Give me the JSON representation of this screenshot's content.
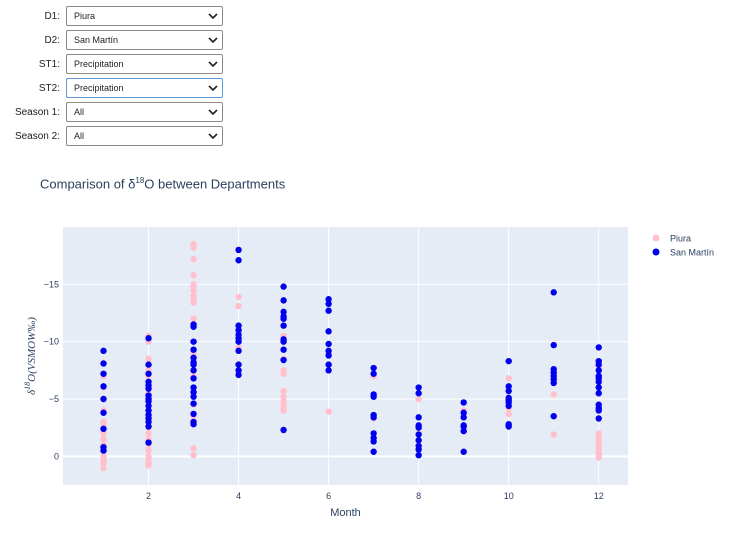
{
  "controls": [
    {
      "label": "D1:",
      "value": "Piura"
    },
    {
      "label": "D2:",
      "value": "San Martín"
    },
    {
      "label": "ST1:",
      "value": "Precipitation"
    },
    {
      "label": "ST2:",
      "value": "Precipitation"
    },
    {
      "label": "Season 1:",
      "value": "All"
    },
    {
      "label": "Season 2:",
      "value": "All"
    }
  ],
  "chart_data": {
    "type": "scatter",
    "title_prefix": "Comparison of δ",
    "title_sup": "18",
    "title_suffix": "O between Departments",
    "xlabel": "Month",
    "ylabel_prefix": "δ",
    "ylabel_sup": "18",
    "ylabel_suffix": "O(VSMOW‰)",
    "xlim": [
      0.1,
      12.65
    ],
    "ylim": [
      2.5,
      -20
    ],
    "y_reversed": true,
    "x_ticks": [
      2,
      4,
      6,
      8,
      10,
      12
    ],
    "y_ticks": [
      0,
      -5,
      -10,
      -15
    ],
    "y_tick_labels": [
      "0",
      "−5",
      "−10",
      "−15"
    ],
    "grid": true,
    "legend_position": "top-right",
    "colors": {
      "piura": "#ffc0cb",
      "san_martin": "#0000ee",
      "plot_bg": "#e5ecf6",
      "grid": "#ffffff",
      "text": "#2a3f5f"
    },
    "series": [
      {
        "name": "Piura",
        "color": "#ffc0cb",
        "x": [
          1,
          1,
          1,
          1,
          1,
          1,
          1,
          1,
          1,
          1,
          1,
          1,
          1,
          1,
          2,
          2,
          2,
          2,
          2,
          2,
          2,
          2,
          2,
          2,
          2,
          2,
          2,
          2,
          2,
          2,
          2,
          2,
          2,
          2,
          2,
          2,
          2,
          3,
          3,
          3,
          3,
          3,
          3,
          3,
          3,
          3,
          3,
          3,
          3,
          3,
          3,
          3,
          3,
          3,
          3,
          3,
          3,
          3,
          3,
          4,
          4,
          4,
          4,
          4,
          4,
          5,
          5,
          5,
          5,
          5,
          5,
          5,
          5,
          5,
          5,
          5,
          6,
          6,
          6,
          7,
          7,
          7,
          7,
          8,
          8,
          8,
          9,
          9,
          10,
          10,
          10,
          10,
          10,
          11,
          11,
          11,
          11,
          12,
          12,
          12,
          12,
          12,
          12,
          12,
          12,
          12,
          12,
          12,
          12,
          12
        ],
        "y": [
          -7.0,
          -6.0,
          -5.0,
          -4.0,
          -3.0,
          -2.8,
          -2.0,
          -1.5,
          -1.0,
          -0.5,
          0,
          0.3,
          0.6,
          1.0,
          -10.5,
          -10.0,
          -8.5,
          -8.0,
          -7.5,
          -7.0,
          -6.5,
          -6.0,
          -5.5,
          -5.0,
          -4.5,
          -4.0,
          -3.5,
          -3.0,
          -2.5,
          -2.0,
          -1.5,
          -1.0,
          -0.5,
          0,
          0.3,
          0.6,
          0.8,
          -18.5,
          -18.2,
          -17.2,
          -15.8,
          -15.0,
          -14.8,
          -14.5,
          -14.0,
          -13.8,
          -13.4,
          -12.0,
          -11.5,
          -10.0,
          -9.0,
          -8.0,
          -7.0,
          -5.5,
          -4.5,
          -3.5,
          -3.0,
          -0.7,
          -0.1,
          -13.9,
          -13.1,
          -11.0,
          -10.3,
          -9.5,
          -7.5,
          -12.0,
          -10.5,
          -8.5,
          -7.5,
          -7.2,
          -5.7,
          -5.2,
          -4.8,
          -4.4,
          -4.1,
          -4.0,
          -7.5,
          -9.0,
          -3.9,
          -7.0,
          -5.3,
          -3.3,
          -1.6,
          -5.0,
          -2.0,
          -1.0,
          -4.0,
          -2.5,
          -6.8,
          -5.0,
          -4.6,
          -4.2,
          -3.7,
          -7.3,
          -6.8,
          -5.4,
          -1.9,
          -7.8,
          -6.5,
          -5.5,
          -4.5,
          -4.2,
          -2.0,
          -1.6,
          -1.3,
          -1.0,
          -0.7,
          -0.4,
          -0.1,
          0.1
        ]
      },
      {
        "name": "San Martín",
        "color": "#0000ee",
        "x": [
          1,
          1,
          1,
          1,
          1,
          1,
          1,
          1,
          1,
          2,
          2,
          2,
          2,
          2,
          2,
          2,
          2,
          2,
          2,
          2,
          2,
          2,
          2,
          2,
          2,
          3,
          3,
          3,
          3,
          3,
          3,
          3,
          3,
          3,
          3,
          3,
          3,
          3,
          3,
          3,
          3,
          4,
          4,
          4,
          4,
          4,
          4,
          4,
          4,
          4,
          4,
          4,
          5,
          5,
          5,
          5,
          5,
          5,
          5,
          5,
          5,
          5,
          5,
          6,
          6,
          6,
          6,
          6,
          6,
          6,
          6,
          6,
          7,
          7,
          7,
          7,
          7,
          7,
          7,
          7,
          7,
          7,
          8,
          8,
          8,
          8,
          8,
          8,
          8,
          8,
          8,
          8,
          9,
          9,
          9,
          9,
          9,
          9,
          9,
          10,
          10,
          10,
          10,
          10,
          10,
          10,
          10,
          10,
          11,
          11,
          11,
          11,
          11,
          11,
          11,
          11,
          12,
          12,
          12,
          12,
          12,
          12,
          12,
          12,
          12,
          12,
          12,
          12,
          12
        ],
        "y": [
          -9.2,
          -8.1,
          -7.2,
          -6.1,
          -5.0,
          -3.8,
          -2.4,
          -0.8,
          -0.5,
          -10.3,
          -8.0,
          -7.2,
          -6.5,
          -6.2,
          -5.9,
          -5.3,
          -5.0,
          -4.8,
          -4.4,
          -4.0,
          -3.6,
          -3.3,
          -3.0,
          -2.6,
          -1.2,
          -11.5,
          -11.3,
          -10.0,
          -9.3,
          -8.6,
          -8.2,
          -8.0,
          -7.5,
          -6.8,
          -6.0,
          -5.6,
          -5.2,
          -4.6,
          -3.7,
          -3.0,
          -2.8,
          -18.0,
          -17.1,
          -11.4,
          -11.0,
          -10.6,
          -10.3,
          -10.0,
          -9.2,
          -8.0,
          -7.5,
          -7.1,
          -14.8,
          -13.6,
          -12.6,
          -12.2,
          -12.0,
          -11.4,
          -10.2,
          -10.0,
          -9.3,
          -8.4,
          -2.3,
          -13.7,
          -13.3,
          -12.7,
          -10.9,
          -9.8,
          -9.2,
          -8.8,
          -8.0,
          -7.5,
          -7.7,
          -7.2,
          -5.4,
          -5.2,
          -3.6,
          -3.4,
          -2.0,
          -1.6,
          -1.3,
          -0.4,
          -6.0,
          -5.5,
          -3.4,
          -2.7,
          -2.5,
          -1.9,
          -1.4,
          -0.9,
          -0.6,
          -0.1,
          -4.7,
          -3.8,
          -3.4,
          -2.7,
          -2.6,
          -2.2,
          -0.4,
          -8.3,
          -6.1,
          -5.7,
          -5.1,
          -4.9,
          -4.7,
          -4.4,
          -2.8,
          -2.6,
          -14.3,
          -9.7,
          -7.6,
          -7.3,
          -7.0,
          -6.7,
          -6.4,
          -3.5,
          -9.5,
          -8.3,
          -8.0,
          -7.5,
          -7.0,
          -6.8,
          -6.5,
          -6.0,
          -5.5,
          -4.5,
          -4.2,
          -4.0,
          -3.3
        ]
      }
    ]
  }
}
